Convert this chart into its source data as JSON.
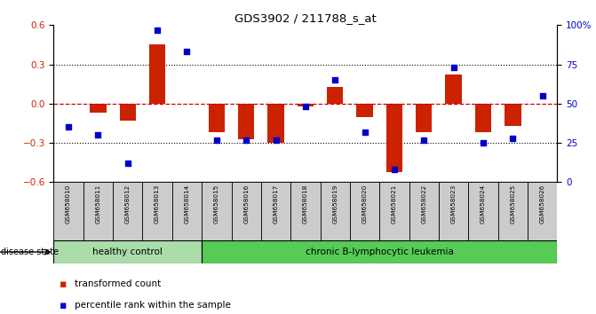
{
  "title": "GDS3902 / 211788_s_at",
  "samples": [
    "GSM658010",
    "GSM658011",
    "GSM658012",
    "GSM658013",
    "GSM658014",
    "GSM658015",
    "GSM658016",
    "GSM658017",
    "GSM658018",
    "GSM658019",
    "GSM658020",
    "GSM658021",
    "GSM658022",
    "GSM658023",
    "GSM658024",
    "GSM658025",
    "GSM658026"
  ],
  "bar_values": [
    0.0,
    -0.07,
    -0.13,
    0.45,
    0.0,
    -0.22,
    -0.27,
    -0.3,
    -0.02,
    0.13,
    -0.1,
    -0.52,
    -0.22,
    0.22,
    -0.22,
    -0.17,
    0.0
  ],
  "dot_values": [
    35,
    30,
    12,
    97,
    83,
    27,
    27,
    27,
    48,
    65,
    32,
    8,
    27,
    73,
    25,
    28,
    55
  ],
  "healthy_count": 5,
  "disease_label_healthy": "healthy control",
  "disease_label_leukemia": "chronic B-lymphocytic leukemia",
  "disease_state_label": "disease state",
  "legend_bar": "transformed count",
  "legend_dot": "percentile rank within the sample",
  "ylim": [
    -0.6,
    0.6
  ],
  "yticks_left": [
    -0.6,
    -0.3,
    0.0,
    0.3,
    0.6
  ],
  "yticks_right": [
    0,
    25,
    50,
    75,
    100
  ],
  "bar_color": "#cc2200",
  "dot_color": "#0000cc",
  "zero_line_color": "#cc0000",
  "grid_color": "#000000",
  "healthy_bg": "#aaddaa",
  "leukemia_bg": "#55cc55",
  "sample_bg": "#cccccc",
  "bar_width": 0.55
}
